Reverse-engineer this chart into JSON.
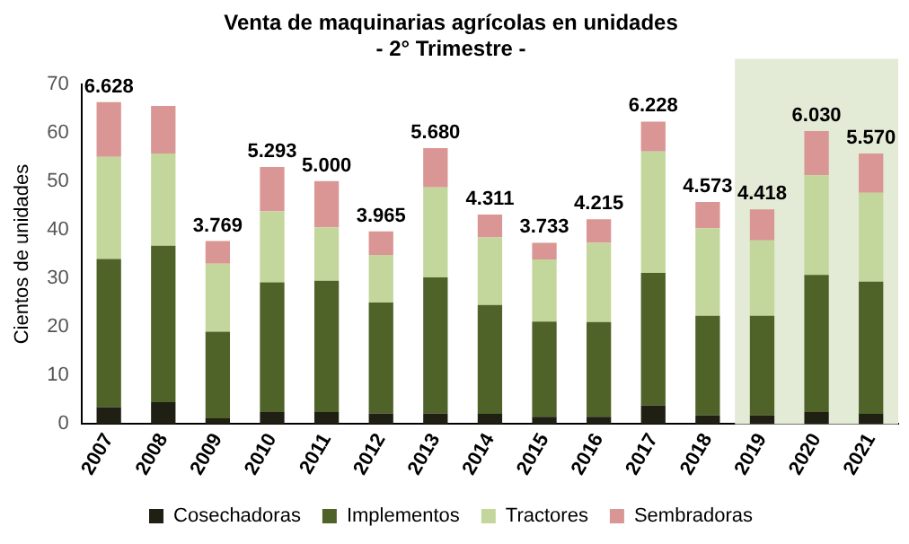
{
  "chart_data": {
    "type": "bar",
    "title": "Venta de maquinarias agrícolas en unidades",
    "subtitle": "- 2° Trimestre -",
    "ylabel": "Cientos de unidades",
    "categories": [
      "2007",
      "2008",
      "2009",
      "2010",
      "2011",
      "2012",
      "2013",
      "2014",
      "2015",
      "2016",
      "2017",
      "2018",
      "2019",
      "2020",
      "2021"
    ],
    "stacked": true,
    "series": [
      {
        "name": "Cosechadoras",
        "color": "#1f1f13",
        "values": [
          3.5,
          4.5,
          1.2,
          2.5,
          2.5,
          2.2,
          2.2,
          2.1,
          1.5,
          1.5,
          3.8,
          1.8,
          1.8,
          2.5,
          2.1
        ]
      },
      {
        "name": "Implementos",
        "color": "#4f6228",
        "values": [
          30.5,
          32.2,
          17.8,
          26.7,
          27,
          22.8,
          28,
          22.4,
          19.6,
          19.5,
          27.3,
          20.5,
          20.5,
          28.2,
          27.2
        ]
      },
      {
        "name": "Tractores",
        "color": "#c3d69b",
        "values": [
          21,
          19,
          14,
          14.6,
          11,
          9.8,
          18.5,
          13.9,
          12.8,
          16.3,
          25,
          18,
          15.5,
          20.5,
          18.3
        ]
      },
      {
        "name": "Sembradoras",
        "color": "#d99694",
        "values": [
          11.28,
          9.8,
          4.69,
          9.13,
          9.5,
          4.85,
          8.1,
          4.71,
          3.43,
          4.85,
          6.18,
          5.43,
          6.38,
          9.1,
          8.1
        ]
      }
    ],
    "totals": [
      "6.628",
      null,
      "3.769",
      "5.293",
      "5.000",
      "3.965",
      "5.680",
      "4.311",
      "3.733",
      "4.215",
      "6.228",
      "4.573",
      "4.418",
      "6.030",
      "5.570"
    ],
    "bands": [
      {
        "axis": "x",
        "from": "2019",
        "to": "2021",
        "color": "#e3ead5"
      }
    ],
    "ylim": [
      0,
      70
    ],
    "yticks": [
      0,
      10,
      20,
      30,
      40,
      50,
      60,
      70
    ],
    "grid": false,
    "legend": "bottom"
  }
}
